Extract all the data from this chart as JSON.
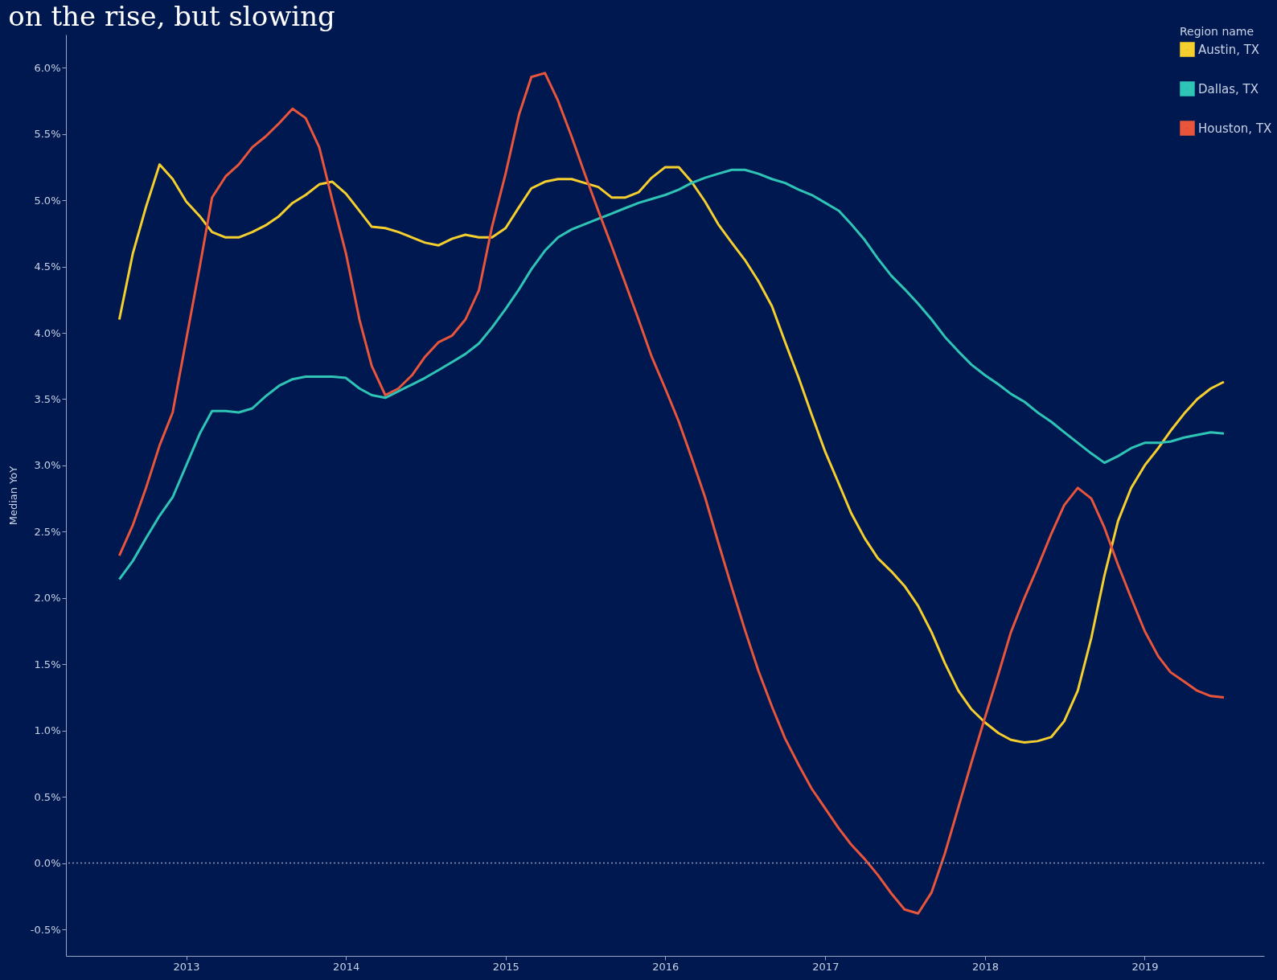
{
  "chart_data": {
    "type": "line",
    "title": "on the rise, but slowing",
    "ylabel": "Median YoY",
    "legend_title": "Region name",
    "legend": "top right",
    "grid": false,
    "marker": "none",
    "line_style": "solid",
    "x": [
      "2012-08",
      "2012-09",
      "2012-10",
      "2012-11",
      "2012-12",
      "2013-01",
      "2013-02",
      "2013-03",
      "2013-04",
      "2013-05",
      "2013-06",
      "2013-07",
      "2013-08",
      "2013-09",
      "2013-10",
      "2013-11",
      "2013-12",
      "2014-01",
      "2014-02",
      "2014-03",
      "2014-04",
      "2014-05",
      "2014-06",
      "2014-07",
      "2014-08",
      "2014-09",
      "2014-10",
      "2014-11",
      "2014-12",
      "2015-01",
      "2015-02",
      "2015-03",
      "2015-04",
      "2015-05",
      "2015-06",
      "2015-07",
      "2015-08",
      "2015-09",
      "2015-10",
      "2015-11",
      "2015-12",
      "2016-01",
      "2016-02",
      "2016-03",
      "2016-04",
      "2016-05",
      "2016-06",
      "2016-07",
      "2016-08",
      "2016-09",
      "2016-10",
      "2016-11",
      "2016-12",
      "2017-01",
      "2017-02",
      "2017-03",
      "2017-04",
      "2017-05",
      "2017-06",
      "2017-07",
      "2017-08",
      "2017-09",
      "2017-10",
      "2017-11",
      "2017-12",
      "2018-01",
      "2018-02",
      "2018-03",
      "2018-04",
      "2018-05",
      "2018-06",
      "2018-07",
      "2018-08",
      "2018-09",
      "2018-10",
      "2018-11",
      "2018-12",
      "2019-01",
      "2019-02",
      "2019-03",
      "2019-04",
      "2019-05",
      "2019-06",
      "2019-07"
    ],
    "series": [
      {
        "name": "Austin, TX",
        "color": "#f5cf2e",
        "values": [
          4.1,
          4.6,
          4.95,
          5.27,
          5.16,
          4.99,
          4.88,
          4.76,
          4.72,
          4.72,
          4.76,
          4.81,
          4.88,
          4.98,
          5.04,
          5.12,
          5.14,
          5.05,
          4.92,
          4.8,
          4.79,
          4.76,
          4.72,
          4.68,
          4.66,
          4.71,
          4.74,
          4.72,
          4.72,
          4.79,
          4.95,
          5.09,
          5.14,
          5.16,
          5.16,
          5.13,
          5.1,
          5.02,
          5.02,
          5.06,
          5.17,
          5.25,
          5.25,
          5.14,
          4.99,
          4.82,
          4.68,
          4.55,
          4.39,
          4.2,
          3.93,
          3.66,
          3.38,
          3.1,
          2.86,
          2.64,
          2.45,
          2.3,
          2.2,
          2.09,
          1.94,
          1.74,
          1.51,
          1.3,
          1.16,
          1.06,
          0.98,
          0.93,
          0.91,
          0.92,
          0.95,
          1.07,
          1.3,
          1.7,
          2.17,
          2.58,
          2.83,
          3.0,
          3.13,
          3.26,
          3.39,
          3.5,
          3.58,
          3.63
        ]
      },
      {
        "name": "Dallas, TX",
        "color": "#2ec4b6",
        "values": [
          2.14,
          2.28,
          2.45,
          2.62,
          2.76,
          3.0,
          3.24,
          3.41,
          3.41,
          3.4,
          3.43,
          3.52,
          3.6,
          3.65,
          3.67,
          3.67,
          3.67,
          3.66,
          3.58,
          3.53,
          3.51,
          3.56,
          3.61,
          3.66,
          3.72,
          3.78,
          3.84,
          3.92,
          4.04,
          4.18,
          4.33,
          4.48,
          4.62,
          4.72,
          4.78,
          4.82,
          4.86,
          4.9,
          4.94,
          4.98,
          5.01,
          5.04,
          5.08,
          5.13,
          5.17,
          5.2,
          5.23,
          5.23,
          5.2,
          5.16,
          5.13,
          5.08,
          5.04,
          4.98,
          4.92,
          4.82,
          4.7,
          4.56,
          4.43,
          4.33,
          4.22,
          4.1,
          3.97,
          3.86,
          3.76,
          3.68,
          3.61,
          3.54,
          3.48,
          3.4,
          3.33,
          3.25,
          3.17,
          3.09,
          3.02,
          3.07,
          3.13,
          3.17,
          3.17,
          3.18,
          3.21,
          3.23,
          3.25,
          3.24
        ]
      },
      {
        "name": "Houston, TX",
        "color": "#e8553b",
        "values": [
          2.32,
          2.55,
          2.83,
          3.15,
          3.4,
          3.95,
          4.5,
          5.02,
          5.18,
          5.27,
          5.4,
          5.48,
          5.58,
          5.69,
          5.62,
          5.4,
          5.0,
          4.6,
          4.1,
          3.75,
          3.53,
          3.58,
          3.68,
          3.82,
          3.93,
          3.98,
          4.1,
          4.32,
          4.8,
          5.2,
          5.65,
          5.93,
          5.96,
          5.75,
          5.48,
          5.2,
          4.92,
          4.65,
          4.38,
          4.1,
          3.82,
          3.58,
          3.33,
          3.06,
          2.76,
          2.42,
          2.08,
          1.76,
          1.45,
          1.18,
          0.94,
          0.74,
          0.56,
          0.41,
          0.26,
          0.14,
          0.03,
          -0.09,
          -0.23,
          -0.35,
          -0.38,
          -0.22,
          0.07,
          0.42,
          0.76,
          1.1,
          1.43,
          1.74,
          2.0,
          2.23,
          2.48,
          2.7,
          2.83,
          2.75,
          2.53,
          2.25,
          2.0,
          1.75,
          1.56,
          1.44,
          1.37,
          1.3,
          1.26,
          1.25
        ]
      }
    ],
    "xlim": [
      "2012-04",
      "2019-10"
    ],
    "xticks": [
      {
        "value": "2013",
        "label": "2013"
      },
      {
        "value": "2014",
        "label": "2014"
      },
      {
        "value": "2015",
        "label": "2015"
      },
      {
        "value": "2016",
        "label": "2016"
      },
      {
        "value": "2017",
        "label": "2017"
      },
      {
        "value": "2018",
        "label": "2018"
      },
      {
        "value": "2019",
        "label": "2019"
      }
    ],
    "ylim": [
      -0.7,
      6.25
    ],
    "yticks": [
      {
        "value": -0.5,
        "label": "-0.5%"
      },
      {
        "value": 0,
        "label": "0.0%"
      },
      {
        "value": 0.5,
        "label": "0.5%"
      },
      {
        "value": 1,
        "label": "1.0%"
      },
      {
        "value": 1.5,
        "label": "1.5%"
      },
      {
        "value": 2,
        "label": "2.0%"
      },
      {
        "value": 2.5,
        "label": "2.5%"
      },
      {
        "value": 3,
        "label": "3.0%"
      },
      {
        "value": 3.5,
        "label": "3.5%"
      },
      {
        "value": 4,
        "label": "4.0%"
      },
      {
        "value": 4.5,
        "label": "4.5%"
      },
      {
        "value": 5,
        "label": "5.0%"
      },
      {
        "value": 5.5,
        "label": "5.5%"
      },
      {
        "value": 6,
        "label": "6.0%"
      }
    ],
    "ref_lines": [
      {
        "axis": "y",
        "value": 0,
        "color": "#8a9ab8",
        "line_style": "dotted"
      }
    ]
  }
}
